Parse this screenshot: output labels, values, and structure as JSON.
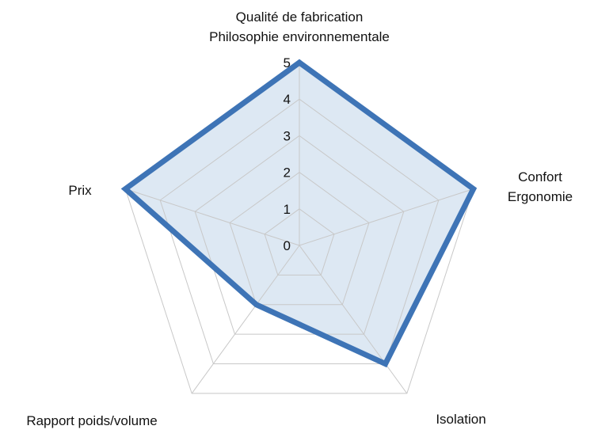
{
  "chart_data": {
    "type": "radar",
    "axes": [
      {
        "label_lines": [
          "Qualité de fabrication",
          "Philosophie environnementale"
        ]
      },
      {
        "label_lines": [
          "Confort",
          "Ergonomie"
        ]
      },
      {
        "label_lines": [
          "Isolation"
        ]
      },
      {
        "label_lines": [
          "Rapport poids/volume"
        ]
      },
      {
        "label_lines": [
          "Prix"
        ]
      }
    ],
    "series": [
      {
        "values": [
          5,
          5,
          4,
          2,
          5
        ]
      }
    ],
    "range": [
      0,
      5
    ],
    "ticks": [
      "0",
      "1",
      "2",
      "3",
      "4",
      "5"
    ],
    "grid": true,
    "colors": {
      "line": "#3e74b6",
      "fill": "#dde8f3",
      "grid": "#c8c8c8",
      "text": "#111111"
    }
  }
}
